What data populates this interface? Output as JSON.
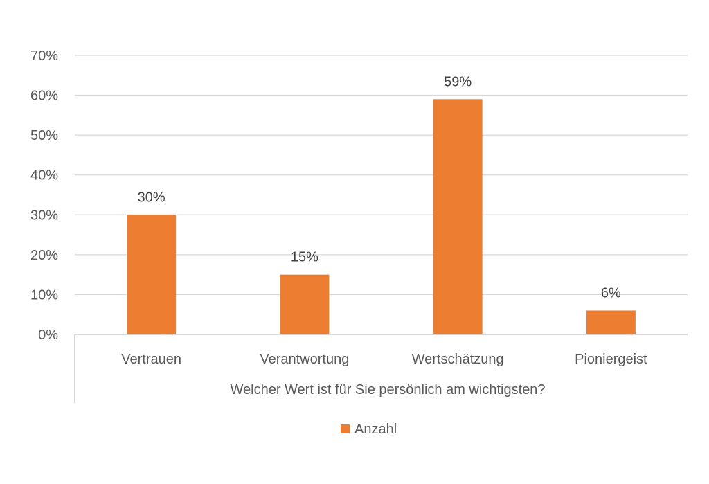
{
  "chart_data": {
    "type": "bar",
    "categories": [
      "Vertrauen",
      "Verantwortung",
      "Wertschätzung",
      "Pioniergeist"
    ],
    "series": [
      {
        "name": "Anzahl",
        "values": [
          30,
          15,
          59,
          6
        ],
        "data_labels": [
          "30%",
          "15%",
          "59%",
          "6%"
        ],
        "color": "#ED7D31"
      }
    ],
    "xlabel": "Welcher Wert ist für Sie persönlich am wichtigsten?",
    "ylabel": "",
    "ylim": [
      0,
      70
    ],
    "ytick_values": [
      0,
      10,
      20,
      30,
      40,
      50,
      60,
      70
    ],
    "ytick_labels": [
      "0%",
      "10%",
      "20%",
      "30%",
      "40%",
      "50%",
      "60%",
      "70%"
    ],
    "grid": true,
    "legend_position": "bottom",
    "colors": {
      "bar": "#ED7D31",
      "grid": "#D9D9D9",
      "axis": "#BFBFBF",
      "text": "#595959"
    }
  }
}
